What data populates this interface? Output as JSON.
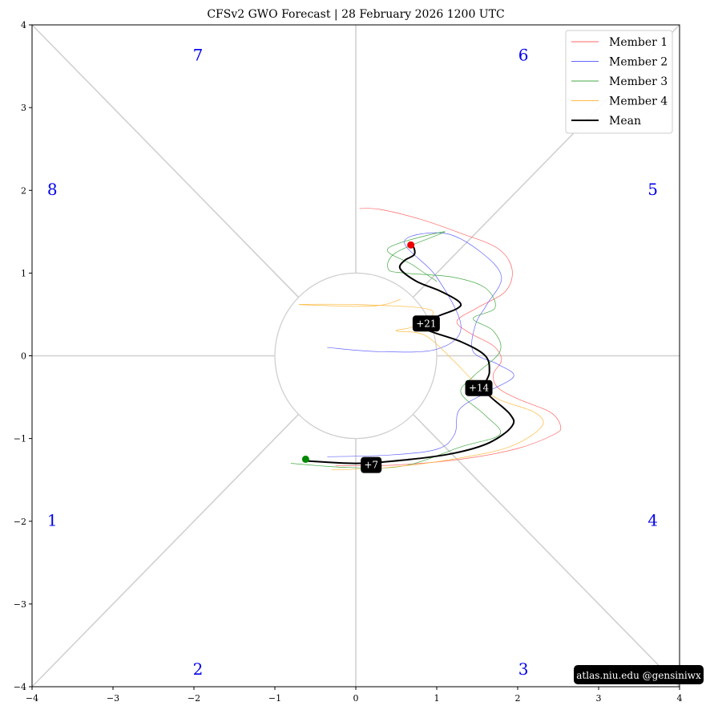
{
  "chart_data": {
    "type": "line",
    "title": "CFSv2 GWO Forecast   |   28  February  2026 1200 UTC",
    "xlim": [
      -4,
      4
    ],
    "ylim": [
      -4,
      4
    ],
    "xticks": [
      -4,
      -3,
      -2,
      -1,
      0,
      1,
      2,
      3,
      4
    ],
    "yticks": [
      -4,
      -3,
      -2,
      -1,
      0,
      1,
      2,
      3,
      4
    ],
    "xtick_labels": [
      "−4",
      "−3",
      "−2",
      "−1",
      "0",
      "1",
      "2",
      "3",
      "4"
    ],
    "ytick_labels": [
      "−4",
      "−3",
      "−2",
      "−1",
      "0",
      "1",
      "2",
      "3",
      "4"
    ],
    "unit_circle_radius": 1,
    "phase_labels": [
      {
        "label": "1",
        "x": -3.75,
        "y": -2.0
      },
      {
        "label": "2",
        "x": -1.95,
        "y": -3.8
      },
      {
        "label": "3",
        "x": 2.07,
        "y": -3.8
      },
      {
        "label": "4",
        "x": 3.67,
        "y": -2.0
      },
      {
        "label": "5",
        "x": 3.67,
        "y": 2.0
      },
      {
        "label": "6",
        "x": 2.07,
        "y": 3.62
      },
      {
        "label": "7",
        "x": -1.95,
        "y": 3.62
      },
      {
        "label": "8",
        "x": -3.75,
        "y": 2.0
      }
    ],
    "legend_position": "top-right",
    "series": [
      {
        "name": "Member 1",
        "color": "#ff6666",
        "points": [
          [
            -0.25,
            -1.33
          ],
          [
            0.5,
            -1.32
          ],
          [
            1.3,
            -1.25
          ],
          [
            2.0,
            -1.12
          ],
          [
            2.45,
            -0.95
          ],
          [
            2.53,
            -0.85
          ],
          [
            2.4,
            -0.68
          ],
          [
            2.0,
            -0.52
          ],
          [
            1.75,
            -0.38
          ],
          [
            1.7,
            -0.22
          ],
          [
            1.8,
            -0.05
          ],
          [
            1.7,
            0.12
          ],
          [
            1.4,
            0.28
          ],
          [
            1.25,
            0.42
          ],
          [
            1.5,
            0.58
          ],
          [
            1.85,
            0.78
          ],
          [
            1.93,
            1.05
          ],
          [
            1.75,
            1.3
          ],
          [
            1.3,
            1.48
          ],
          [
            0.8,
            1.65
          ],
          [
            0.3,
            1.77
          ],
          [
            0.05,
            1.78
          ]
        ]
      },
      {
        "name": "Member 2",
        "color": "#6666ff",
        "points": [
          [
            -0.35,
            -1.22
          ],
          [
            0.4,
            -1.2
          ],
          [
            1.0,
            -1.13
          ],
          [
            1.22,
            -0.95
          ],
          [
            1.28,
            -0.65
          ],
          [
            1.6,
            -0.45
          ],
          [
            1.95,
            -0.25
          ],
          [
            1.75,
            -0.1
          ],
          [
            1.45,
            0.05
          ],
          [
            1.48,
            0.38
          ],
          [
            1.62,
            0.62
          ],
          [
            1.8,
            0.95
          ],
          [
            1.55,
            1.25
          ],
          [
            1.1,
            1.48
          ],
          [
            0.6,
            1.38
          ],
          [
            1.0,
            0.95
          ],
          [
            1.3,
            0.35
          ],
          [
            1.0,
            0.08
          ],
          [
            0.3,
            0.05
          ],
          [
            -0.35,
            0.1
          ]
        ]
      },
      {
        "name": "Member 3",
        "color": "#44aa44",
        "points": [
          [
            -0.8,
            -1.3
          ],
          [
            -0.1,
            -1.35
          ],
          [
            0.6,
            -1.33
          ],
          [
            1.3,
            -1.1
          ],
          [
            1.78,
            -0.95
          ],
          [
            1.6,
            -0.72
          ],
          [
            1.3,
            -0.45
          ],
          [
            1.45,
            -0.25
          ],
          [
            1.78,
            0.05
          ],
          [
            1.7,
            0.3
          ],
          [
            1.45,
            0.45
          ],
          [
            1.72,
            0.58
          ],
          [
            1.6,
            0.82
          ],
          [
            1.2,
            0.95
          ],
          [
            0.6,
            1.0
          ],
          [
            0.4,
            1.05
          ],
          [
            0.5,
            1.25
          ],
          [
            1.1,
            1.5
          ],
          [
            0.4,
            1.3
          ],
          [
            0.7,
            1.1
          ],
          [
            1.0,
            0.9
          ]
        ]
      },
      {
        "name": "Member 4",
        "color": "#ffbb44",
        "points": [
          [
            -0.3,
            -1.38
          ],
          [
            0.4,
            -1.35
          ],
          [
            1.2,
            -1.25
          ],
          [
            1.9,
            -1.1
          ],
          [
            2.3,
            -0.85
          ],
          [
            2.2,
            -0.68
          ],
          [
            1.75,
            -0.52
          ],
          [
            1.45,
            -0.3
          ],
          [
            1.2,
            -0.05
          ],
          [
            0.85,
            0.25
          ],
          [
            0.5,
            0.3
          ],
          [
            0.7,
            0.35
          ],
          [
            0.95,
            0.5
          ],
          [
            0.8,
            0.58
          ],
          [
            0.0,
            0.62
          ],
          [
            -0.7,
            0.62
          ],
          [
            0.2,
            0.6
          ],
          [
            0.55,
            0.68
          ]
        ]
      },
      {
        "name": "Mean",
        "color": "#000000",
        "points": [
          [
            -0.62,
            -1.27
          ],
          [
            0.0,
            -1.3
          ],
          [
            0.6,
            -1.26
          ],
          [
            1.2,
            -1.18
          ],
          [
            1.65,
            -1.05
          ],
          [
            1.93,
            -0.85
          ],
          [
            1.9,
            -0.7
          ],
          [
            1.6,
            -0.42
          ],
          [
            1.65,
            -0.2
          ],
          [
            1.6,
            0.0
          ],
          [
            1.3,
            0.17
          ],
          [
            0.85,
            0.33
          ],
          [
            0.95,
            0.45
          ],
          [
            1.25,
            0.57
          ],
          [
            1.28,
            0.65
          ],
          [
            1.05,
            0.78
          ],
          [
            0.75,
            0.9
          ],
          [
            0.55,
            1.05
          ],
          [
            0.6,
            1.15
          ],
          [
            0.72,
            1.22
          ],
          [
            0.72,
            1.3
          ],
          [
            0.68,
            1.34
          ]
        ]
      }
    ],
    "start_point": {
      "x": -0.62,
      "y": -1.25,
      "color": "#008800"
    },
    "end_point": {
      "x": 0.68,
      "y": 1.34,
      "color": "#ee0000"
    },
    "day_labels": [
      {
        "label": "+7",
        "x": 0.19,
        "y": -1.32
      },
      {
        "label": "+14",
        "x": 1.52,
        "y": -0.39
      },
      {
        "label": "+21",
        "x": 0.87,
        "y": 0.39
      }
    ],
    "credit": "atlas.niu.edu  @gensiniwx"
  }
}
